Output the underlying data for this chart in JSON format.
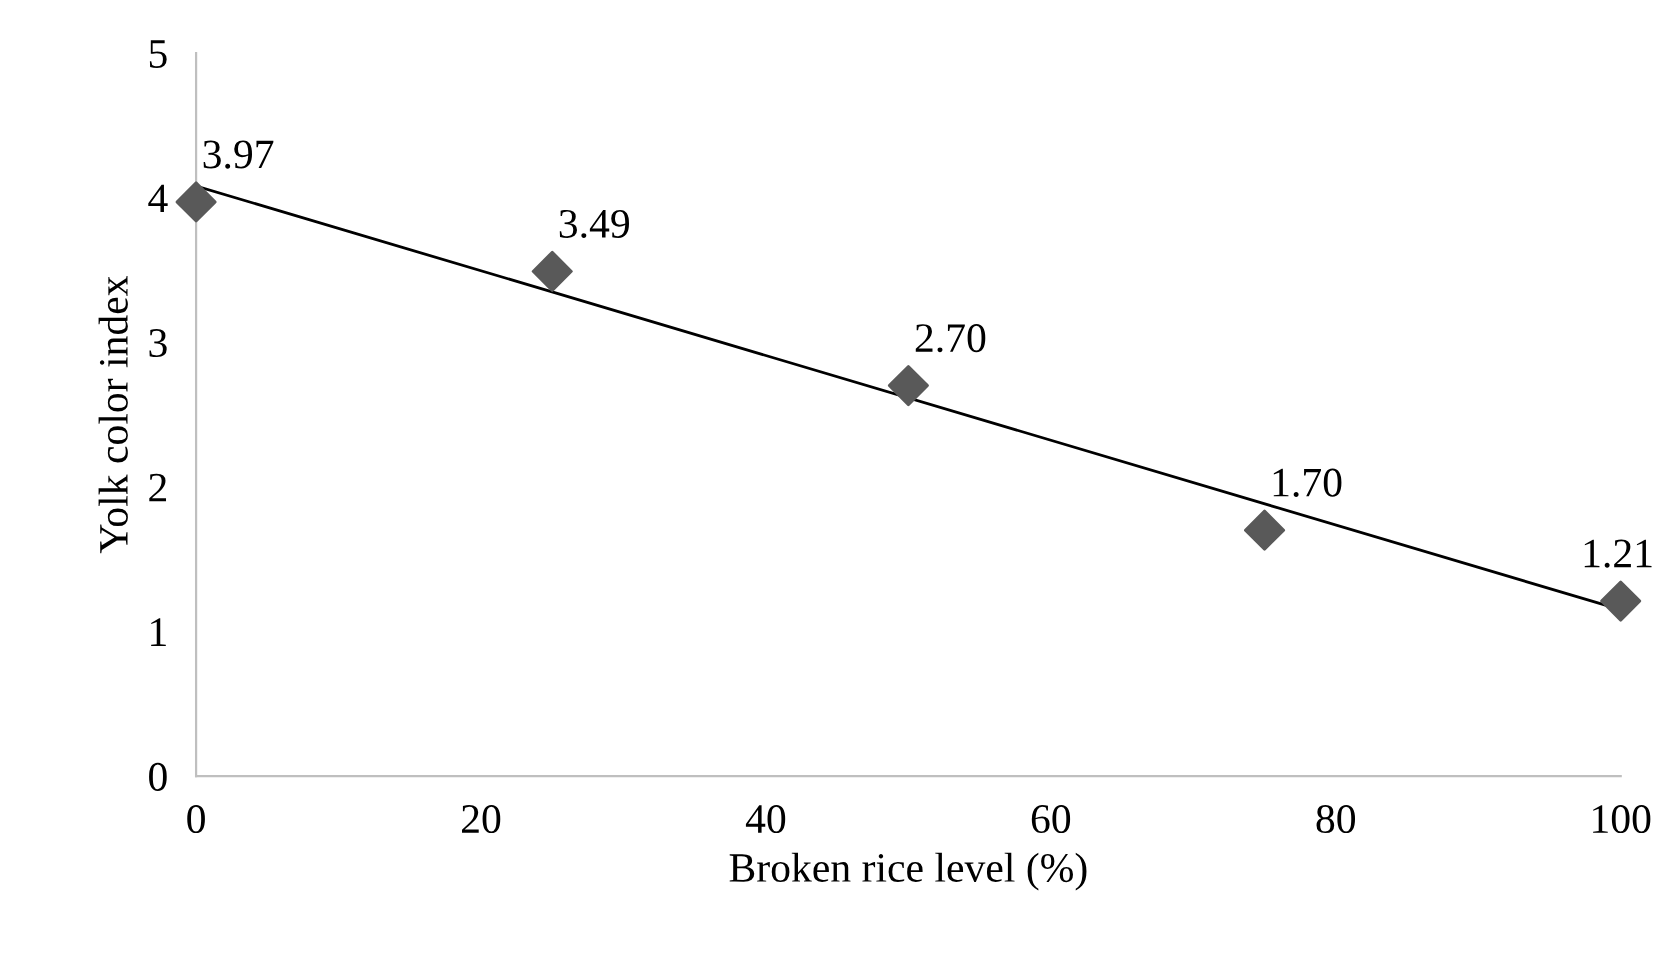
{
  "chart_data": {
    "type": "scatter",
    "xlabel": "Broken rice level (%)",
    "ylabel": "Yolk color index",
    "x": [
      0,
      25,
      50,
      75,
      100
    ],
    "series": [
      {
        "color": "#595959",
        "marker": "diamond",
        "values": [
          3.97,
          3.49,
          2.7,
          1.7,
          1.21
        ],
        "value_labels": [
          "3.97",
          "3.49",
          "2.70",
          "1.70",
          "1.21"
        ]
      },
      {
        "type": "line",
        "color": "#000000",
        "marker": "none",
        "line_style": "solid",
        "x": [
          0,
          100
        ],
        "values": [
          4.08,
          1.15
        ]
      }
    ],
    "xlim": [
      0,
      100
    ],
    "xticks": [
      0,
      20,
      40,
      60,
      80,
      100
    ],
    "ylim": [
      0,
      5
    ],
    "yticks": [
      0,
      1,
      2,
      3,
      4,
      5
    ],
    "grid": false
  }
}
